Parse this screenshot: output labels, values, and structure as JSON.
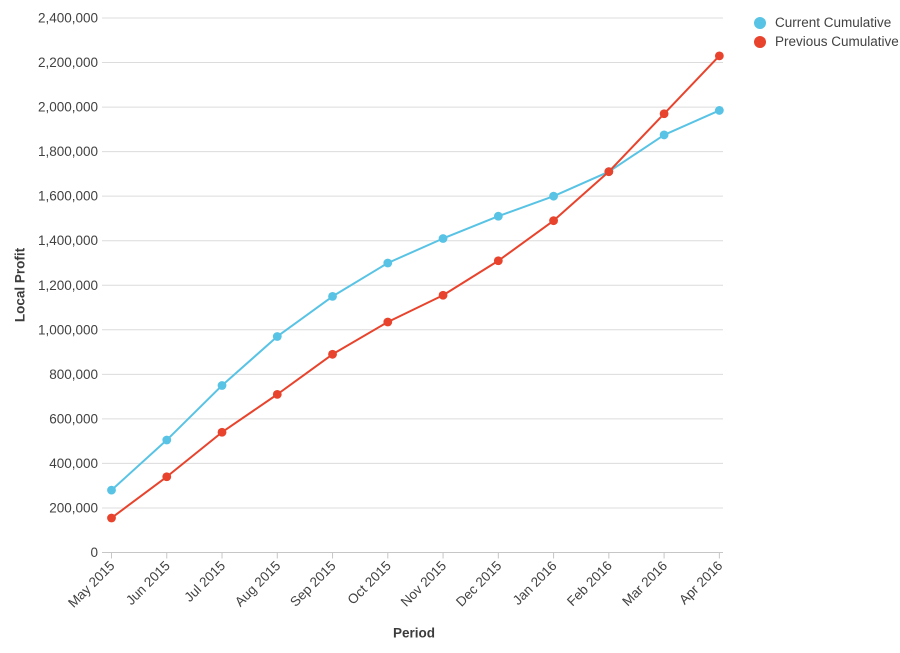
{
  "chart_data": {
    "type": "line",
    "title": "",
    "xlabel": "Period",
    "ylabel": "Local Profit",
    "categories": [
      "May 2015",
      "Jun 2015",
      "Jul 2015",
      "Aug 2015",
      "Sep 2015",
      "Oct 2015",
      "Nov 2015",
      "Dec 2015",
      "Jan 2016",
      "Feb 2016",
      "Mar 2016",
      "Apr 2016"
    ],
    "series": [
      {
        "name": "Current Cumulative",
        "color": "#58C3E4",
        "values": [
          280000,
          505000,
          750000,
          970000,
          1150000,
          1300000,
          1410000,
          1510000,
          1600000,
          1710000,
          1875000,
          1985000
        ]
      },
      {
        "name": "Previous Cumulative",
        "color": "#E8432C",
        "values": [
          155000,
          340000,
          540000,
          710000,
          890000,
          1035000,
          1155000,
          1310000,
          1490000,
          1710000,
          1970000,
          2230000
        ]
      }
    ],
    "y_axis": {
      "min": 0,
      "max": 2400000,
      "step": 200000,
      "tick_labels": [
        "0",
        "200,000",
        "400,000",
        "600,000",
        "800,000",
        "1,000,000",
        "1,200,000",
        "1,400,000",
        "1,600,000",
        "1,800,000",
        "2,000,000",
        "2,200,000",
        "2,400,000"
      ]
    },
    "legend_position": "top-right",
    "grid": true,
    "colors": {
      "gridline": "#DCDCDC",
      "axis": "#C6C6C6",
      "text": "#424242"
    }
  }
}
